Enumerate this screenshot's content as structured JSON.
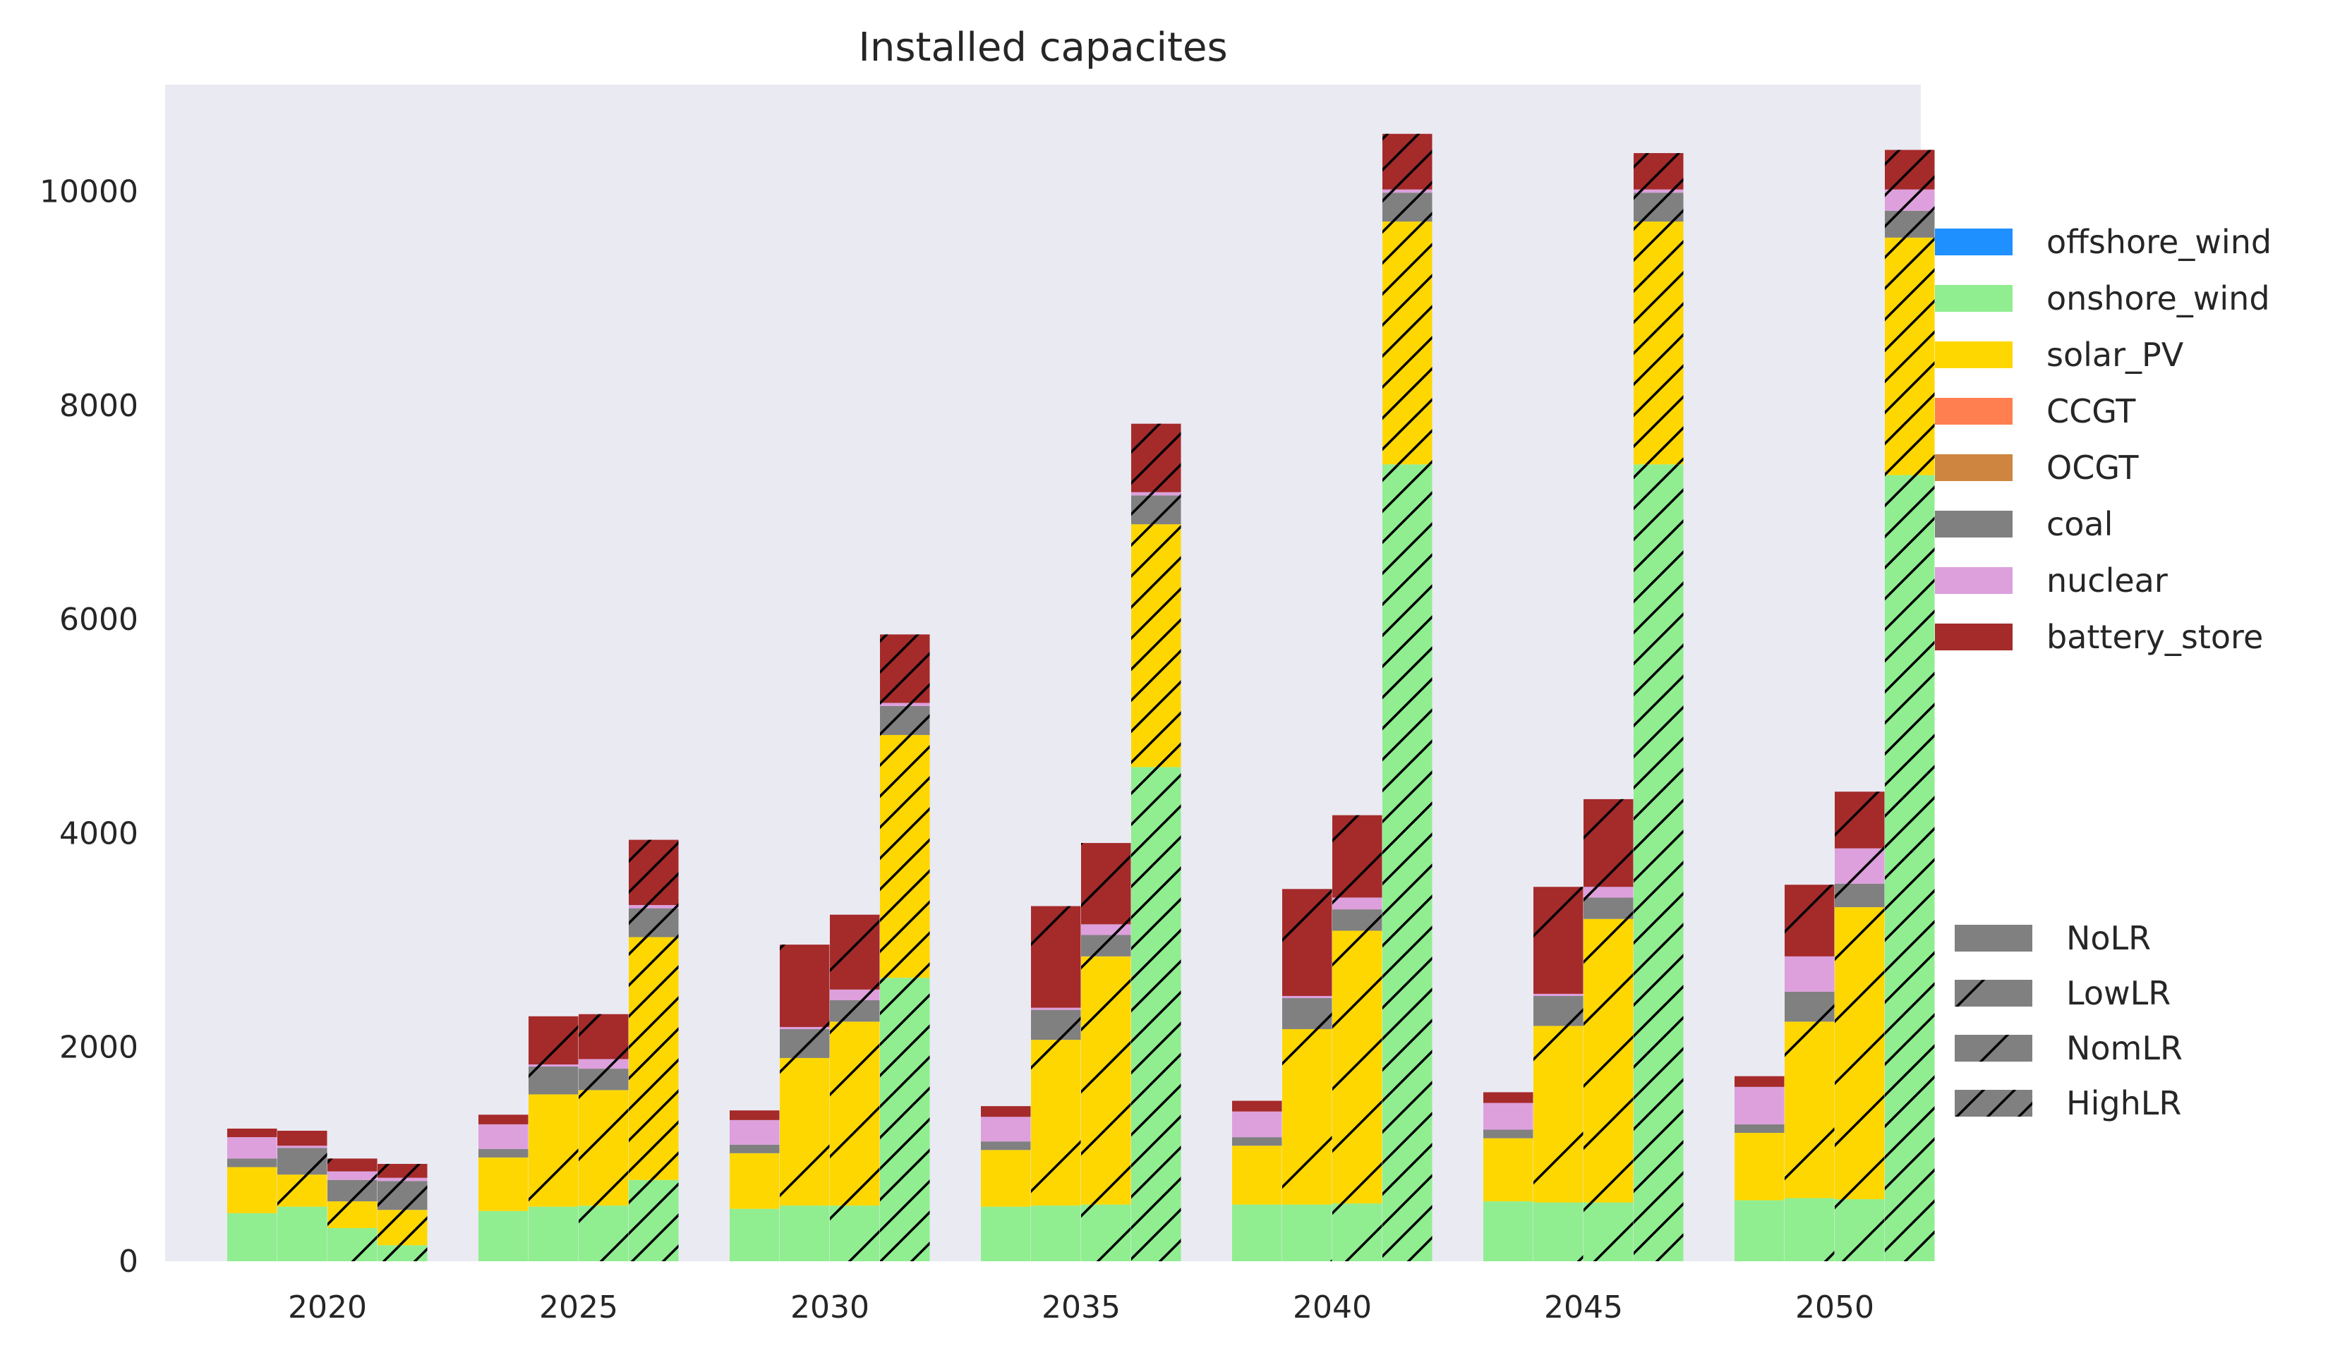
{
  "chart_data": {
    "type": "bar",
    "title": "Installed capacites",
    "xlabel": "",
    "ylabel": "",
    "ylim": [
      0,
      11000
    ],
    "yticks": [
      0,
      2000,
      4000,
      6000,
      8000,
      10000
    ],
    "categories": [
      "2020",
      "2025",
      "2030",
      "2035",
      "2040",
      "2045",
      "2050"
    ],
    "grid": false,
    "stacked": true,
    "technologies": [
      {
        "name": "offshore_wind",
        "color": "#1e90ff"
      },
      {
        "name": "onshore_wind",
        "color": "#90ee90"
      },
      {
        "name": "solar_PV",
        "color": "#ffd700"
      },
      {
        "name": "CCGT",
        "color": "#ff7f50"
      },
      {
        "name": "OCGT",
        "color": "#cd853f"
      },
      {
        "name": "coal",
        "color": "#808080"
      },
      {
        "name": "nuclear",
        "color": "#dda0dd"
      },
      {
        "name": "battery_store",
        "color": "#a52a2a"
      }
    ],
    "scenarios": [
      {
        "name": "NoLR",
        "hatch": "none"
      },
      {
        "name": "LowLR",
        "hatch": "sparse"
      },
      {
        "name": "NomLR",
        "hatch": "medium"
      },
      {
        "name": "HighLR",
        "hatch": "dense"
      }
    ],
    "stack_order": [
      "onshore_wind",
      "solar_PV",
      "coal",
      "nuclear",
      "battery_store"
    ],
    "values": {
      "2020": {
        "NoLR": {
          "onshore_wind": 450,
          "solar_PV": 430,
          "coal": 80,
          "nuclear": 200,
          "battery_store": 80
        },
        "LowLR": {
          "onshore_wind": 510,
          "solar_PV": 300,
          "coal": 250,
          "nuclear": 20,
          "battery_store": 140
        },
        "NomLR": {
          "onshore_wind": 310,
          "solar_PV": 250,
          "coal": 200,
          "nuclear": 80,
          "battery_store": 120
        },
        "HighLR": {
          "onshore_wind": 150,
          "solar_PV": 330,
          "coal": 270,
          "nuclear": 30,
          "battery_store": 130
        }
      },
      "2025": {
        "NoLR": {
          "onshore_wind": 470,
          "solar_PV": 500,
          "coal": 80,
          "nuclear": 230,
          "battery_store": 90
        },
        "LowLR": {
          "onshore_wind": 510,
          "solar_PV": 1050,
          "coal": 260,
          "nuclear": 20,
          "battery_store": 450
        },
        "NomLR": {
          "onshore_wind": 520,
          "solar_PV": 1080,
          "coal": 200,
          "nuclear": 90,
          "battery_store": 420
        },
        "HighLR": {
          "onshore_wind": 760,
          "solar_PV": 2270,
          "coal": 270,
          "nuclear": 30,
          "battery_store": 610
        }
      },
      "2030": {
        "NoLR": {
          "onshore_wind": 490,
          "solar_PV": 520,
          "coal": 80,
          "nuclear": 230,
          "battery_store": 90
        },
        "LowLR": {
          "onshore_wind": 520,
          "solar_PV": 1380,
          "coal": 270,
          "nuclear": 20,
          "battery_store": 770
        },
        "NomLR": {
          "onshore_wind": 520,
          "solar_PV": 1720,
          "coal": 200,
          "nuclear": 100,
          "battery_store": 700
        },
        "HighLR": {
          "onshore_wind": 2650,
          "solar_PV": 2270,
          "coal": 270,
          "nuclear": 30,
          "battery_store": 640
        }
      },
      "2035": {
        "NoLR": {
          "onshore_wind": 510,
          "solar_PV": 530,
          "coal": 80,
          "nuclear": 230,
          "battery_store": 100
        },
        "LowLR": {
          "onshore_wind": 520,
          "solar_PV": 1550,
          "coal": 280,
          "nuclear": 20,
          "battery_store": 950
        },
        "NomLR": {
          "onshore_wind": 530,
          "solar_PV": 2320,
          "coal": 200,
          "nuclear": 100,
          "battery_store": 760
        },
        "HighLR": {
          "onshore_wind": 4620,
          "solar_PV": 2270,
          "coal": 270,
          "nuclear": 30,
          "battery_store": 640
        }
      },
      "2040": {
        "NoLR": {
          "onshore_wind": 530,
          "solar_PV": 550,
          "coal": 80,
          "nuclear": 240,
          "battery_store": 100
        },
        "LowLR": {
          "onshore_wind": 530,
          "solar_PV": 1640,
          "coal": 290,
          "nuclear": 20,
          "battery_store": 1000
        },
        "NomLR": {
          "onshore_wind": 540,
          "solar_PV": 2550,
          "coal": 200,
          "nuclear": 110,
          "battery_store": 770
        },
        "HighLR": {
          "onshore_wind": 7450,
          "solar_PV": 2270,
          "coal": 270,
          "nuclear": 30,
          "battery_store": 520
        }
      },
      "2045": {
        "NoLR": {
          "onshore_wind": 560,
          "solar_PV": 590,
          "coal": 80,
          "nuclear": 250,
          "battery_store": 100
        },
        "LowLR": {
          "onshore_wind": 550,
          "solar_PV": 1650,
          "coal": 280,
          "nuclear": 20,
          "battery_store": 1000
        },
        "NomLR": {
          "onshore_wind": 550,
          "solar_PV": 2650,
          "coal": 200,
          "nuclear": 100,
          "battery_store": 820
        },
        "HighLR": {
          "onshore_wind": 7450,
          "solar_PV": 2270,
          "coal": 270,
          "nuclear": 30,
          "battery_store": 340
        }
      },
      "2050": {
        "NoLR": {
          "onshore_wind": 570,
          "solar_PV": 630,
          "coal": 80,
          "nuclear": 350,
          "battery_store": 100
        },
        "LowLR": {
          "onshore_wind": 590,
          "solar_PV": 1650,
          "coal": 280,
          "nuclear": 330,
          "battery_store": 670
        },
        "NomLR": {
          "onshore_wind": 580,
          "solar_PV": 2730,
          "coal": 220,
          "nuclear": 330,
          "battery_store": 530
        },
        "HighLR": {
          "onshore_wind": 7350,
          "solar_PV": 2220,
          "coal": 250,
          "nuclear": 200,
          "battery_store": 370
        }
      }
    }
  }
}
